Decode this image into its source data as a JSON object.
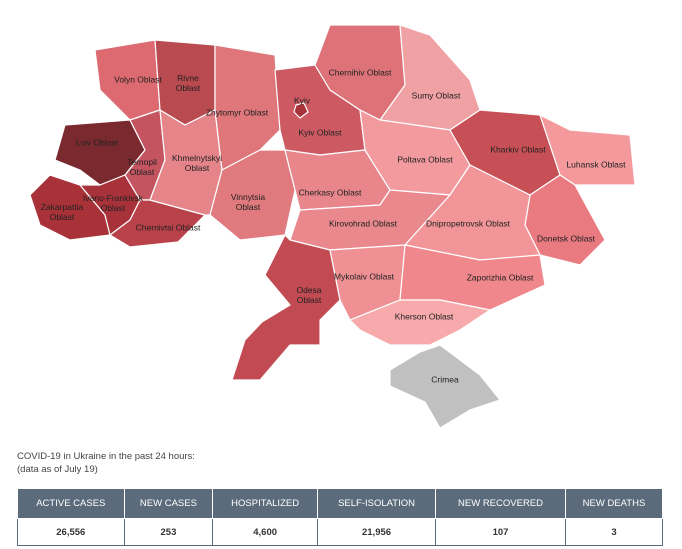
{
  "map": {
    "regions": [
      {
        "label": "Volyn Oblast"
      },
      {
        "label": "Rivne Oblast"
      },
      {
        "label": "Lviv Oblast"
      },
      {
        "label": "Zakarpattia Oblast"
      },
      {
        "label": "Ivano-Frankivsk Oblast"
      },
      {
        "label": "Ternopil Oblast"
      },
      {
        "label": "Chernivtsi Oblast"
      },
      {
        "label": "Khmelnytskyi Oblast"
      },
      {
        "label": "Zhytomyr Oblast"
      },
      {
        "label": "Kyiv Oblast"
      },
      {
        "label": "Kyiv"
      },
      {
        "label": "Chernihiv Oblast"
      },
      {
        "label": "Sumy Oblast"
      },
      {
        "label": "Vinnytsia Oblast"
      },
      {
        "label": "Cherkasy Oblast"
      },
      {
        "label": "Poltava Oblast"
      },
      {
        "label": "Kharkiv Oblast"
      },
      {
        "label": "Luhansk Oblast"
      },
      {
        "label": "Donetsk Oblast"
      },
      {
        "label": "Kirovohrad Oblast"
      },
      {
        "label": "Dnipropetrovsk Oblast"
      },
      {
        "label": "Odesa Oblast"
      },
      {
        "label": "Mykolaiv Oblast"
      },
      {
        "label": "Zaporizhia Oblast"
      },
      {
        "label": "Kherson Oblast"
      },
      {
        "label": "Crimea"
      }
    ]
  },
  "caption": [
    "COVID-19 in Ukraine in the past 24 hours:",
    "(data as of July 19)"
  ],
  "table": {
    "headers": [
      "ACTIVE CASES",
      "NEW CASES",
      "HOSPITALIZED",
      "SELF-ISOLATION",
      "NEW RECOVERED",
      "NEW DEATHS"
    ],
    "rows": [
      [
        "26,556",
        "253",
        "4,600",
        "21,956",
        "107",
        "3"
      ]
    ]
  }
}
